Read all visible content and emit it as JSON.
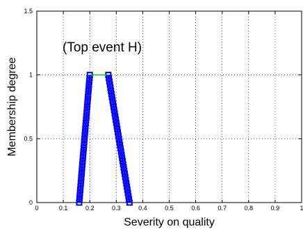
{
  "chart_data": {
    "type": "line",
    "xlabel": "Severity on quality",
    "ylabel": "Membership degree",
    "annotation": "(Top event H)",
    "xlim": [
      0,
      1
    ],
    "ylim": [
      0,
      1.5
    ],
    "grid": true,
    "x_ticks": [
      0,
      0.1,
      0.2,
      0.3,
      0.4,
      0.5,
      0.6,
      0.7,
      0.8,
      0.9,
      1
    ],
    "x_tick_labels": [
      "0",
      "0.1",
      "0.2",
      "0.3",
      "0.4",
      "0.5",
      "0.6",
      "0.7",
      "0.8",
      "0.9",
      "1"
    ],
    "y_ticks": [
      0,
      0.5,
      1,
      1.5
    ],
    "y_tick_labels": [
      "0",
      "0.5",
      "1",
      "1.5"
    ],
    "series": [
      {
        "color": "#0000ff",
        "marker": "square",
        "segments": [
          {
            "x": [
              0.16,
              0.2
            ],
            "y": [
              0,
              1
            ]
          },
          {
            "x": [
              0.27,
              0.35
            ],
            "y": [
              1,
              0
            ]
          }
        ]
      },
      {
        "color": "#00cc00",
        "segments": [
          {
            "x": [
              0.2,
              0.27
            ],
            "y": [
              1,
              1
            ]
          }
        ]
      }
    ]
  }
}
